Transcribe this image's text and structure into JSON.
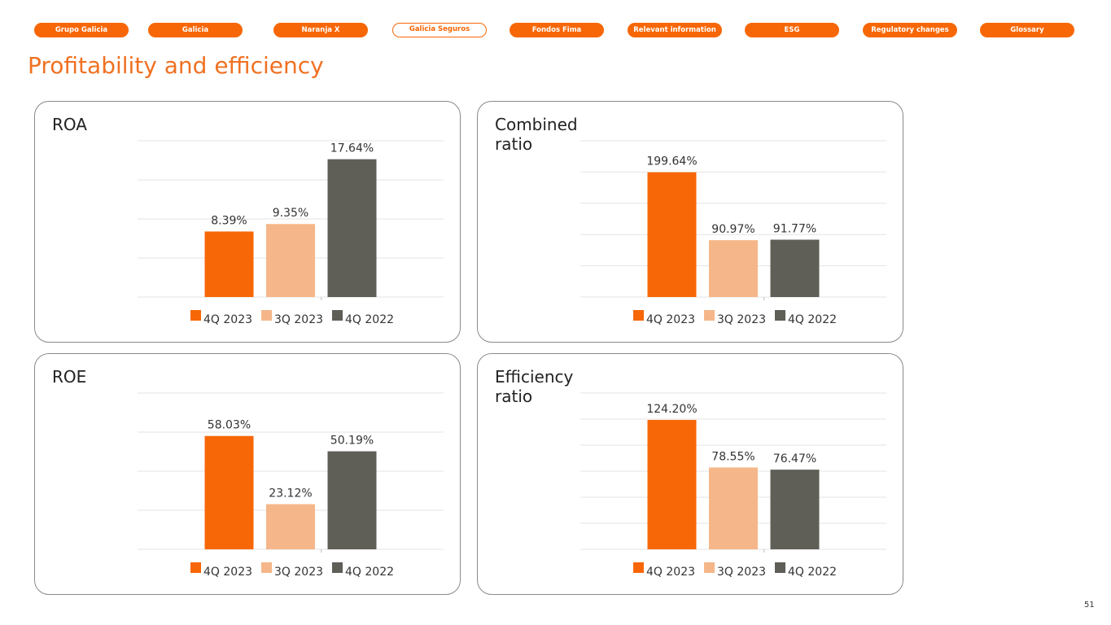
{
  "nav": [
    "Grupo Galicia",
    "Galicia",
    "Naranja X",
    "Galicia Seguros",
    "Fondos Fima",
    "Relevant information",
    "ESG",
    "Regulatory changes",
    "Glossary"
  ],
  "title": "Profitability and efficiency",
  "page_number": "51",
  "chart_data": [
    {
      "type": "bar",
      "title": "ROA",
      "categories": [
        null
      ],
      "ylim": [
        0,
        20
      ],
      "yticks": [
        0,
        5,
        10,
        15,
        20
      ],
      "grid": true,
      "series": [
        {
          "name": "4Q 2023",
          "color": "#f76707",
          "values": [
            8.39
          ],
          "value_labels": [
            "8.39%"
          ]
        },
        {
          "name": "3Q 2023",
          "color": "#f5b789",
          "values": [
            9.35
          ],
          "value_labels": [
            "9.35%"
          ]
        },
        {
          "name": "4Q 2022",
          "color": "#5f5e57",
          "values": [
            17.64
          ],
          "value_labels": [
            "17.64%"
          ]
        }
      ]
    },
    {
      "type": "bar",
      "title": "Combined ratio",
      "categories": [
        null
      ],
      "ylim": [
        0,
        250
      ],
      "yticks": [
        0,
        50,
        100,
        150,
        200,
        250
      ],
      "grid": true,
      "series": [
        {
          "name": "4Q 2023",
          "color": "#f76707",
          "values": [
            199.64
          ],
          "value_labels": [
            "199.64%"
          ]
        },
        {
          "name": "3Q 2023",
          "color": "#f5b789",
          "values": [
            90.97
          ],
          "value_labels": [
            "90.97%"
          ]
        },
        {
          "name": "4Q 2022",
          "color": "#5f5e57",
          "values": [
            91.77
          ],
          "value_labels": [
            "91.77%"
          ]
        }
      ]
    },
    {
      "type": "bar",
      "title": "ROE",
      "categories": [
        null
      ],
      "ylim": [
        0,
        80
      ],
      "yticks": [
        0,
        20,
        40,
        60,
        80
      ],
      "grid": true,
      "series": [
        {
          "name": "4Q 2023",
          "color": "#f76707",
          "values": [
            58.03
          ],
          "value_labels": [
            "58.03%"
          ]
        },
        {
          "name": "3Q 2023",
          "color": "#f5b789",
          "values": [
            23.12
          ],
          "value_labels": [
            "23.12%"
          ]
        },
        {
          "name": "4Q 2022",
          "color": "#5f5e57",
          "values": [
            50.19
          ],
          "value_labels": [
            "50.19%"
          ]
        }
      ]
    },
    {
      "type": "bar",
      "title": "Efficiency ratio",
      "categories": [
        null
      ],
      "ylim": [
        0,
        150
      ],
      "yticks": [
        0,
        25,
        50,
        75,
        100,
        125,
        150
      ],
      "grid": true,
      "series": [
        {
          "name": "4Q 2023",
          "color": "#f76707",
          "values": [
            124.2
          ],
          "value_labels": [
            "124.20%"
          ]
        },
        {
          "name": "3Q 2023",
          "color": "#f5b789",
          "values": [
            78.55
          ],
          "value_labels": [
            "78.55%"
          ]
        },
        {
          "name": "4Q 2022",
          "color": "#5f5e57",
          "values": [
            76.47
          ],
          "value_labels": [
            "76.47%"
          ]
        }
      ]
    }
  ]
}
